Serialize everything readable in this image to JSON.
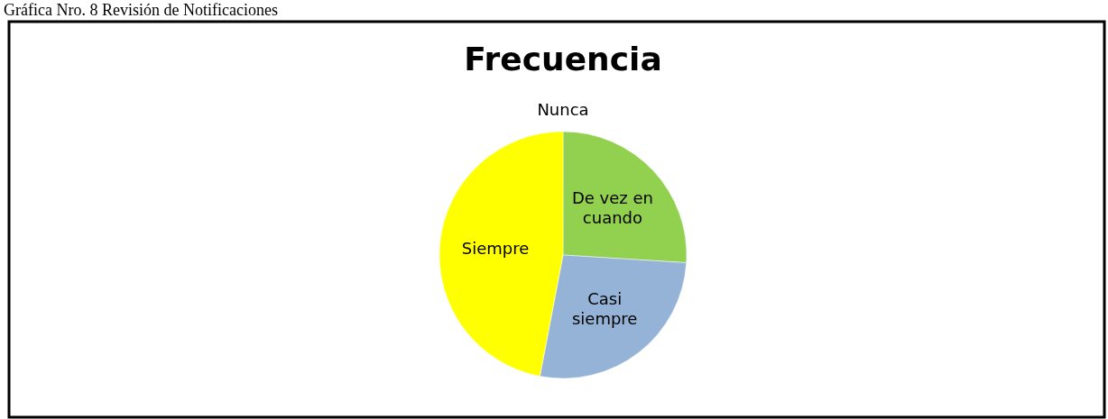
{
  "chart_data": {
    "type": "pie",
    "title": "Frecuencia",
    "annotations": [
      "Gráfica Nro. 8 Revisión de Notificaciones"
    ],
    "categories": [
      "Nunca",
      "De vez en cuando",
      "Casi siempre",
      "Siempre"
    ],
    "values": [
      0,
      26,
      27,
      47
    ],
    "colors": [
      "#4f81bd",
      "#92d050",
      "#95b3d7",
      "#ffff00"
    ]
  }
}
